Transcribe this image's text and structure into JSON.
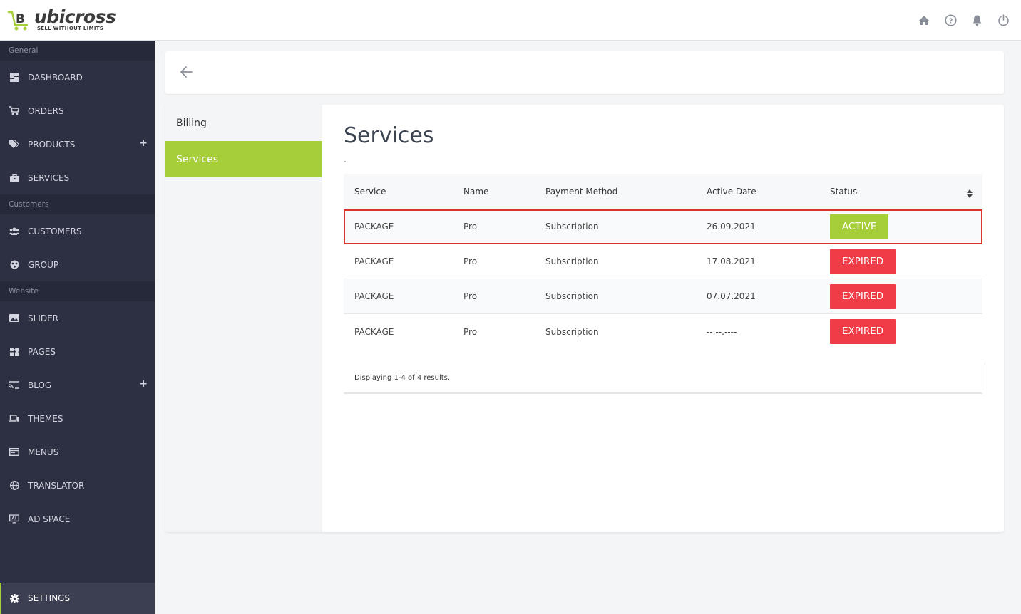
{
  "brand": {
    "name": "ubicross",
    "tagline": "SELL WITHOUT LIMITS",
    "accent_color": "#a6ce39"
  },
  "header": {
    "icons": [
      "home-icon",
      "help-icon",
      "bell-icon",
      "power-icon"
    ]
  },
  "sidebar": {
    "sections": [
      {
        "title": "General",
        "items": [
          {
            "label": "DASHBOARD",
            "icon": "dashboard-icon"
          },
          {
            "label": "ORDERS",
            "icon": "cart-icon"
          },
          {
            "label": "PRODUCTS",
            "icon": "tags-icon",
            "expandable": true
          },
          {
            "label": "SERVICES",
            "icon": "briefcase-icon"
          }
        ]
      },
      {
        "title": "Customers",
        "items": [
          {
            "label": "CUSTOMERS",
            "icon": "users-icon"
          },
          {
            "label": "GROUP",
            "icon": "group-icon"
          }
        ]
      },
      {
        "title": "Website",
        "items": [
          {
            "label": "SLIDER",
            "icon": "image-icon"
          },
          {
            "label": "PAGES",
            "icon": "pages-icon"
          },
          {
            "label": "BLOG",
            "icon": "cast-icon",
            "expandable": true
          },
          {
            "label": "THEMES",
            "icon": "devices-icon"
          },
          {
            "label": "MENUS",
            "icon": "menu-window-icon"
          },
          {
            "label": "TRANSLATOR",
            "icon": "globe-icon"
          },
          {
            "label": "AD SPACE",
            "icon": "ad-screen-icon"
          }
        ]
      }
    ],
    "settings_label": "SETTINGS"
  },
  "subnav": {
    "items": [
      {
        "label": "Billing",
        "active": false
      },
      {
        "label": "Services",
        "active": true
      }
    ]
  },
  "main": {
    "title": "Services",
    "dot": ".",
    "table": {
      "columns": [
        "Service",
        "Name",
        "Payment Method",
        "Active Date",
        "Status"
      ],
      "rows": [
        {
          "service": "PACKAGE",
          "name": "Pro",
          "payment": "Subscription",
          "date": "26.09.2021",
          "status": "ACTIVE"
        },
        {
          "service": "PACKAGE",
          "name": "Pro",
          "payment": "Subscription",
          "date": "17.08.2021",
          "status": "EXPIRED"
        },
        {
          "service": "PACKAGE",
          "name": "Pro",
          "payment": "Subscription",
          "date": "07.07.2021",
          "status": "EXPIRED"
        },
        {
          "service": "PACKAGE",
          "name": "Pro",
          "payment": "Subscription",
          "date": "--.--.----",
          "status": "EXPIRED"
        }
      ]
    },
    "summary": "Displaying 1-4 of 4 results."
  },
  "colors": {
    "active": "#a6ce39",
    "expired": "#f03c47",
    "sidebar_bg": "#2d3043",
    "highlight_border": "#d9362b"
  }
}
